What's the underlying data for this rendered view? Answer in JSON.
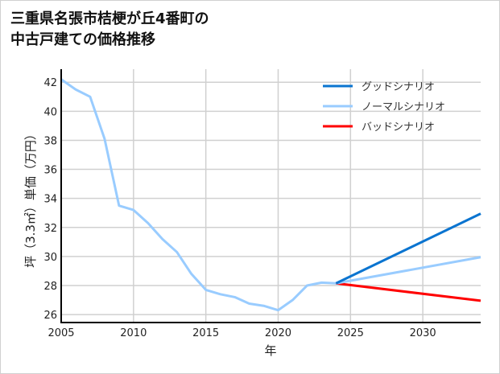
{
  "chart_data": {
    "type": "line",
    "title_lines": [
      "三重県名張市桔梗が丘4番町の",
      "中古戸建ての価格推移"
    ],
    "xlabel": "年",
    "ylabel": "坪（3.3㎡）単価（万円）",
    "xlim": [
      2005,
      2034
    ],
    "ylim": [
      25.45,
      42.9
    ],
    "xticks": [
      2005,
      2010,
      2015,
      2020,
      2025,
      2030
    ],
    "yticks": [
      26,
      28,
      30,
      32,
      34,
      36,
      38,
      40,
      42
    ],
    "grid": true,
    "legend_position": "top-right",
    "historical": {
      "x": [
        2005,
        2006,
        2007,
        2008,
        2009,
        2010,
        2011,
        2012,
        2013,
        2014,
        2015,
        2016,
        2017,
        2018,
        2019,
        2020,
        2021,
        2022,
        2023,
        2024
      ],
      "y": [
        42.2,
        41.5,
        41.0,
        38.1,
        33.5,
        33.2,
        32.3,
        31.2,
        30.3,
        28.8,
        27.7,
        27.4,
        27.2,
        26.75,
        26.6,
        26.3,
        27.0,
        28.0,
        28.2,
        28.15
      ]
    },
    "series": [
      {
        "name": "グッドシナリオ",
        "color": "#0a74d0",
        "x": [
          2024,
          2034
        ],
        "y": [
          28.15,
          32.95
        ]
      },
      {
        "name": "ノーマルシナリオ",
        "color": "#99ccff",
        "x": [
          2024,
          2034
        ],
        "y": [
          28.15,
          29.95
        ]
      },
      {
        "name": "バッドシナリオ",
        "color": "#ff0000",
        "x": [
          2024,
          2034
        ],
        "y": [
          28.15,
          26.95
        ]
      }
    ]
  }
}
